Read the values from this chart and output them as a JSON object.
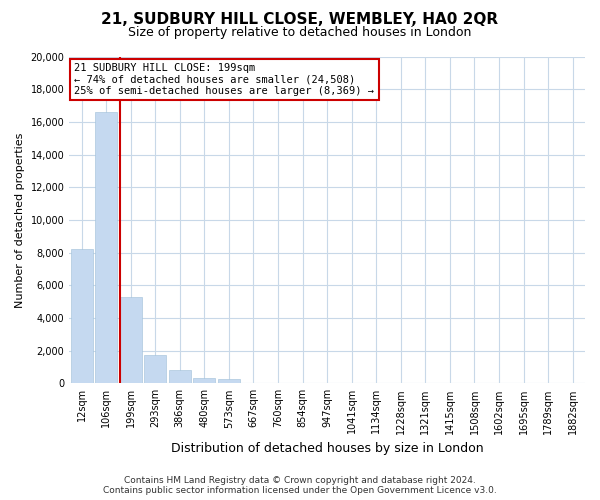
{
  "title": "21, SUDBURY HILL CLOSE, WEMBLEY, HA0 2QR",
  "subtitle": "Size of property relative to detached houses in London",
  "xlabel": "Distribution of detached houses by size in London",
  "ylabel": "Number of detached properties",
  "bar_labels": [
    "12sqm",
    "106sqm",
    "199sqm",
    "293sqm",
    "386sqm",
    "480sqm",
    "573sqm",
    "667sqm",
    "760sqm",
    "854sqm",
    "947sqm",
    "1041sqm",
    "1134sqm",
    "1228sqm",
    "1321sqm",
    "1415sqm",
    "1508sqm",
    "1602sqm",
    "1695sqm",
    "1789sqm",
    "1882sqm"
  ],
  "bar_heights": [
    8200,
    16600,
    5300,
    1750,
    800,
    300,
    250,
    0,
    0,
    0,
    0,
    0,
    0,
    0,
    0,
    0,
    0,
    0,
    0,
    0,
    0
  ],
  "bar_color": "#c5d9f0",
  "bar_edge_color": "#9fbfd8",
  "vline_color": "#cc0000",
  "vline_x_index": 2,
  "annotation_title": "21 SUDBURY HILL CLOSE: 199sqm",
  "annotation_line1": "← 74% of detached houses are smaller (24,508)",
  "annotation_line2": "25% of semi-detached houses are larger (8,369) →",
  "annotation_box_color": "#cc0000",
  "ylim": [
    0,
    20000
  ],
  "yticks": [
    0,
    2000,
    4000,
    6000,
    8000,
    10000,
    12000,
    14000,
    16000,
    18000,
    20000
  ],
  "footer_line1": "Contains HM Land Registry data © Crown copyright and database right 2024.",
  "footer_line2": "Contains public sector information licensed under the Open Government Licence v3.0.",
  "bg_color": "#ffffff",
  "grid_color": "#c8d8e8",
  "title_fontsize": 11,
  "subtitle_fontsize": 9,
  "ylabel_fontsize": 8,
  "xlabel_fontsize": 9,
  "tick_fontsize": 7,
  "footer_fontsize": 6.5
}
